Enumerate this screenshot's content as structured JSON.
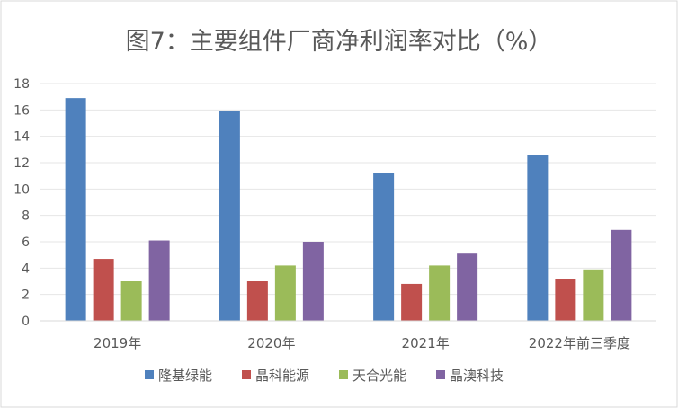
{
  "chart_data": {
    "type": "bar",
    "title": "图7：主要组件厂商净利润率对比（%）",
    "xlabel": "",
    "ylabel": "",
    "categories": [
      "2019年",
      "2020年",
      "2021年",
      "2022年前三季度"
    ],
    "series": [
      {
        "name": "隆基绿能",
        "color": "#4F81BD",
        "values": [
          16.9,
          15.9,
          11.2,
          12.6
        ]
      },
      {
        "name": "晶科能源",
        "color": "#C0504D",
        "values": [
          4.7,
          3.0,
          2.8,
          3.2
        ]
      },
      {
        "name": "天合光能",
        "color": "#9BBB59",
        "values": [
          3.0,
          4.2,
          4.2,
          3.9
        ]
      },
      {
        "name": "晶澳科技",
        "color": "#8064A2",
        "values": [
          6.1,
          6.0,
          5.1,
          6.9
        ]
      }
    ],
    "ylim": [
      0,
      18
    ],
    "yticks": [
      0,
      2,
      4,
      6,
      8,
      10,
      12,
      14,
      16,
      18
    ],
    "grid": true,
    "legend_position": "bottom"
  }
}
